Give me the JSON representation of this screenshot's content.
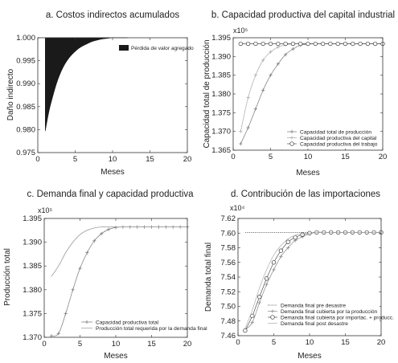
{
  "panels": [
    {
      "id": "a",
      "title": "a. Costos indirectos acumulados",
      "ylabel": "Daño indirecto",
      "xlabel": "Meses",
      "xticks": [
        "0",
        "5",
        "10",
        "15",
        "20"
      ],
      "yticks": [
        "1.000",
        "0.995",
        "0.990",
        "0.985",
        "0.980",
        "0.975"
      ],
      "legend": [
        "Pérdida de valor agregado"
      ]
    },
    {
      "id": "b",
      "title": "b. Capacidad productiva del capital industrial",
      "ylabel": "Capacidad total de producción",
      "xlabel": "Meses",
      "exponent": "x10⁵",
      "xticks": [
        "0",
        "5",
        "10",
        "15",
        "20"
      ],
      "yticks": [
        "1.395",
        "1.390",
        "1.385",
        "1.380",
        "1.375",
        "1.370",
        "1.365"
      ],
      "legend": [
        "Capacidad total de producción",
        "Capacidad productiva del capital",
        "Capacidad productiva del trabajo"
      ]
    },
    {
      "id": "c",
      "title": "c. Demanda final y capacidad productiva",
      "ylabel": "Producción total",
      "xlabel": "Meses",
      "exponent": "x10⁵",
      "xticks": [
        "0",
        "5",
        "10",
        "15",
        "20"
      ],
      "yticks": [
        "1.395",
        "1.390",
        "1.385",
        "1.380",
        "1.375",
        "1.370"
      ],
      "legend": [
        "Capacidad productiva total",
        "Producción total requerida por la demanda final"
      ]
    },
    {
      "id": "d",
      "title": "d. Contribución de las importaciones",
      "ylabel": "Demanda total final",
      "xlabel": "Meses",
      "exponent": "x10⁴",
      "xticks": [
        "0",
        "5",
        "10",
        "15",
        "20"
      ],
      "yticks": [
        "7.62",
        "7.60",
        "7.58",
        "7.56",
        "7.54",
        "7.52",
        "7.50",
        "7.48",
        "7.46"
      ],
      "legend": [
        "Demanda final pre desastre",
        "Demanda final cubierta por la producción",
        "Demanda final cubierta por importac. + producc.",
        "Demanda final post desastre"
      ]
    }
  ],
  "chart_data": [
    {
      "type": "area",
      "title": "a. Costos indirectos acumulados",
      "xlabel": "Meses",
      "ylabel": "Daño indirecto",
      "xlim": [
        0,
        20
      ],
      "ylim": [
        0.975,
        1.0
      ],
      "color": "#1a1a1a",
      "series": [
        {
          "name": "Pérdida de valor agregado",
          "x": [
            1,
            1.5,
            2,
            2.5,
            3,
            3.5,
            4,
            4.5,
            5,
            5.5,
            6,
            6.5,
            7,
            7.5,
            8,
            8.5,
            9,
            9.5,
            10,
            11,
            12
          ],
          "values": [
            0.9797,
            0.984,
            0.9872,
            0.99,
            0.9922,
            0.9939,
            0.9952,
            0.9962,
            0.997,
            0.9977,
            0.9982,
            0.9986,
            0.999,
            0.9993,
            0.9995,
            0.9997,
            0.9998,
            0.9999,
            1.0,
            1.0,
            1.0
          ]
        }
      ]
    },
    {
      "type": "line",
      "title": "b. Capacidad productiva del capital industrial",
      "xlabel": "Meses",
      "ylabel": "Capacidad total de producción",
      "y_multiplier": "x10⁵",
      "xlim": [
        0,
        20
      ],
      "ylim": [
        1.365,
        1.395
      ],
      "x": [
        1,
        2,
        3,
        4,
        5,
        6,
        7,
        8,
        9,
        10,
        11,
        12,
        13,
        14,
        15,
        16,
        17,
        18,
        19,
        20
      ],
      "series": [
        {
          "name": "Capacidad total de producción",
          "marker": "plus",
          "values": [
            1.3667,
            1.371,
            1.376,
            1.381,
            1.385,
            1.388,
            1.3905,
            1.392,
            1.393,
            1.3933,
            1.3934,
            1.3934,
            1.3934,
            1.3934,
            1.3934,
            1.3934,
            1.3934,
            1.3934,
            1.3934,
            1.3934
          ]
        },
        {
          "name": "Capacidad productiva del capital",
          "marker": "plus",
          "values": [
            1.37,
            1.379,
            1.385,
            1.389,
            1.3912,
            1.3925,
            1.3931,
            1.3933,
            1.3934,
            1.3934,
            1.3934,
            1.3934,
            1.3934,
            1.3934,
            1.3934,
            1.3934,
            1.3934,
            1.3934,
            1.3934,
            1.3934
          ]
        },
        {
          "name": "Capacidad productiva del trabajo",
          "marker": "circle",
          "values": [
            1.3934,
            1.3934,
            1.3934,
            1.3934,
            1.3934,
            1.3934,
            1.3934,
            1.3934,
            1.3934,
            1.3934,
            1.3934,
            1.3934,
            1.3934,
            1.3934,
            1.3934,
            1.3934,
            1.3934,
            1.3934,
            1.3934,
            1.3934
          ]
        }
      ]
    },
    {
      "type": "line",
      "title": "c. Demanda final y capacidad productiva",
      "xlabel": "Meses",
      "ylabel": "Producción total",
      "y_multiplier": "x10⁵",
      "xlim": [
        0,
        20
      ],
      "ylim": [
        1.37,
        1.395
      ],
      "x": [
        1,
        2,
        3,
        4,
        5,
        6,
        7,
        8,
        9,
        10,
        11,
        12,
        13,
        14,
        15,
        16,
        17,
        18,
        19,
        20
      ],
      "series": [
        {
          "name": "Capacidad productiva total",
          "marker": "plus",
          "values": [
            1.3703,
            1.3708,
            1.375,
            1.38,
            1.3845,
            1.3878,
            1.3903,
            1.3918,
            1.3927,
            1.3931,
            1.3932,
            1.3932,
            1.3932,
            1.3932,
            1.3932,
            1.3932,
            1.3932,
            1.3932,
            1.3932,
            1.3932
          ]
        },
        {
          "name": "Producción total requerida por la demanda final",
          "marker": "none",
          "values": [
            1.3828,
            1.385,
            1.3878,
            1.39,
            1.3916,
            1.3925,
            1.393,
            1.3932,
            1.3932,
            1.3932,
            1.3932,
            1.3932,
            1.3932,
            1.3932,
            1.3932,
            1.3932,
            1.3932,
            1.3932,
            1.3932,
            1.3932
          ]
        }
      ]
    },
    {
      "type": "line",
      "title": "d. Contribución de las importaciones",
      "xlabel": "Meses",
      "ylabel": "Demanda total final",
      "y_multiplier": "x10⁴",
      "xlim": [
        0,
        20
      ],
      "ylim": [
        7.46,
        7.62
      ],
      "x": [
        1,
        2,
        3,
        4,
        5,
        6,
        7,
        8,
        9,
        10,
        11,
        12,
        13,
        14,
        15,
        16,
        17,
        18,
        19,
        20
      ],
      "series": [
        {
          "name": "Demanda final pre desastre",
          "marker": "none",
          "values": [
            7.601,
            7.601,
            7.601,
            7.601,
            7.601,
            7.601,
            7.601,
            7.601,
            7.601,
            7.601,
            7.601,
            7.601,
            7.601,
            7.601,
            7.601,
            7.601,
            7.601,
            7.601,
            7.601,
            7.601
          ]
        },
        {
          "name": "Demanda final cubierta por la producción",
          "marker": "plus",
          "values": [
            7.468,
            7.478,
            7.505,
            7.53,
            7.55,
            7.568,
            7.58,
            7.59,
            7.595,
            7.599,
            7.601,
            7.601,
            7.601,
            7.601,
            7.601,
            7.601,
            7.601,
            7.601,
            7.601,
            7.601
          ]
        },
        {
          "name": "Demanda final cubierta por importac. + producc.",
          "marker": "circle",
          "values": [
            7.467,
            7.487,
            7.513,
            7.538,
            7.56,
            7.576,
            7.588,
            7.594,
            7.598,
            7.6,
            7.601,
            7.601,
            7.601,
            7.601,
            7.601,
            7.601,
            7.601,
            7.601,
            7.601,
            7.601
          ]
        },
        {
          "name": "Demanda final post desastre",
          "marker": "none",
          "values": [
            7.47,
            7.495,
            7.525,
            7.55,
            7.57,
            7.583,
            7.592,
            7.597,
            7.599,
            7.6,
            7.601,
            7.601,
            7.601,
            7.601,
            7.601,
            7.601,
            7.601,
            7.601,
            7.601,
            7.601
          ]
        }
      ]
    }
  ]
}
